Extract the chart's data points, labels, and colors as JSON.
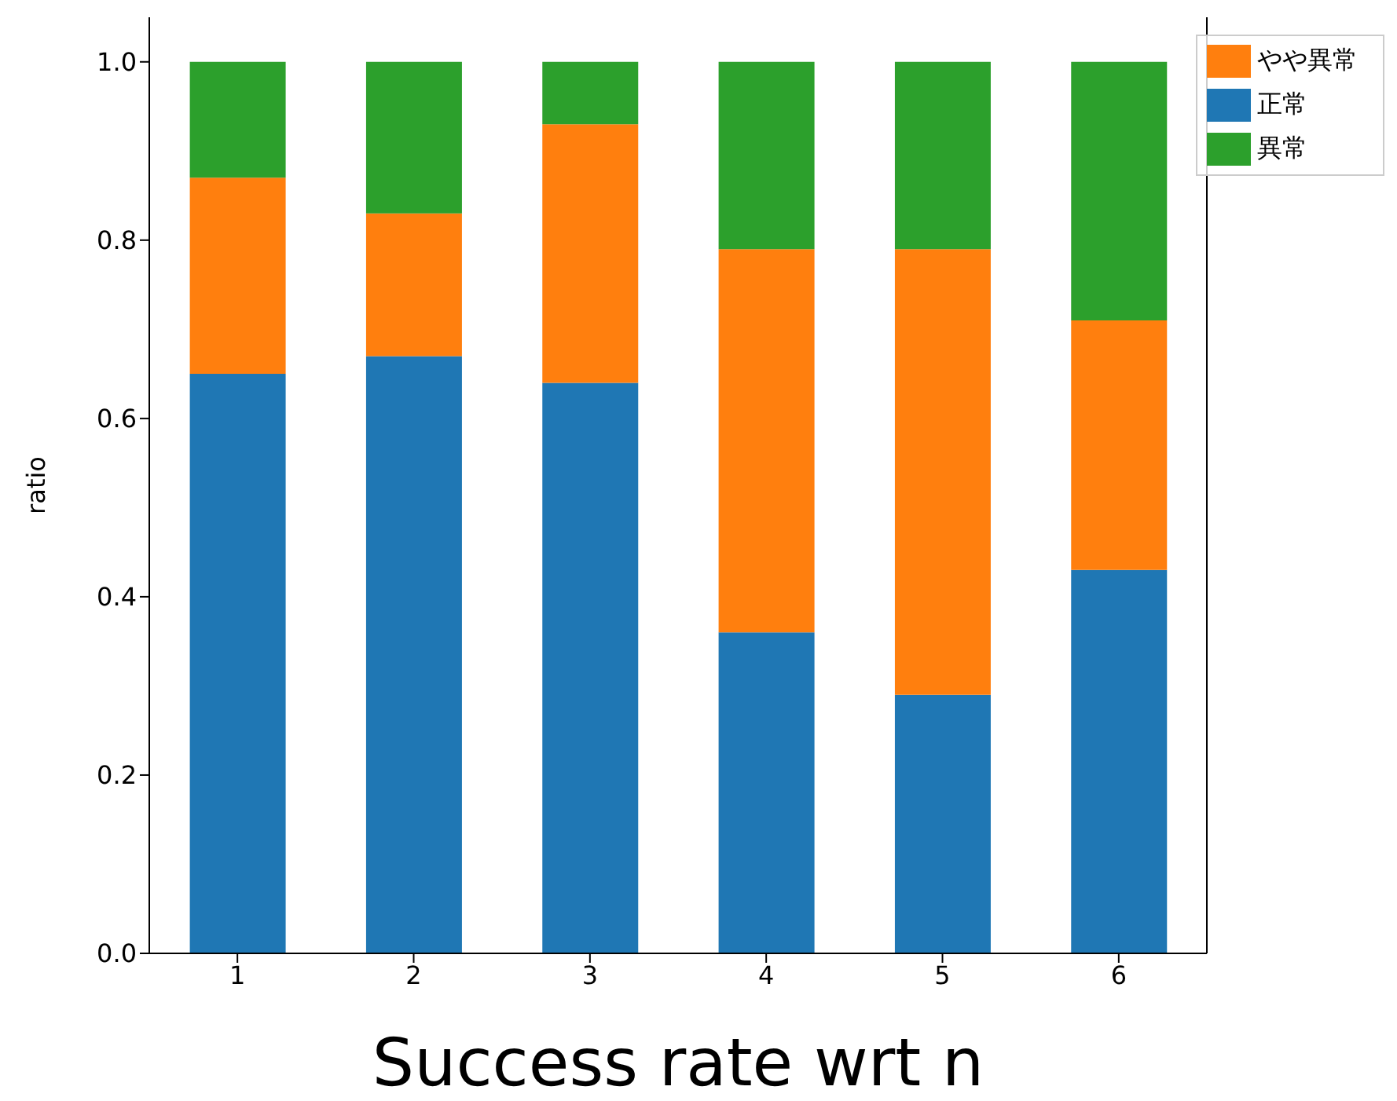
{
  "chart_data": {
    "type": "bar",
    "stacked": true,
    "xlabel": "Success rate wrt n",
    "ylabel": "ratio",
    "categories": [
      "1",
      "2",
      "3",
      "4",
      "5",
      "6"
    ],
    "series": [
      {
        "name": "正常",
        "color": "#1f77b4",
        "values": [
          0.65,
          0.67,
          0.64,
          0.36,
          0.29,
          0.43
        ]
      },
      {
        "name": "やや異常",
        "color": "#ff7f0e",
        "values": [
          0.22,
          0.16,
          0.29,
          0.43,
          0.5,
          0.28
        ]
      },
      {
        "name": "異常",
        "color": "#2ca02c",
        "values": [
          0.13,
          0.17,
          0.07,
          0.21,
          0.21,
          0.29
        ]
      }
    ],
    "ylim": [
      0,
      1.05
    ],
    "yticks": [
      {
        "value": 0,
        "label": "0.0"
      },
      {
        "value": 0.2,
        "label": "0.2"
      },
      {
        "value": 0.4,
        "label": "0.4"
      },
      {
        "value": 0.6,
        "label": "0.6"
      },
      {
        "value": 0.8,
        "label": "0.8"
      },
      {
        "value": 1,
        "label": "1.0"
      }
    ],
    "grid": false,
    "legend": "top right"
  }
}
